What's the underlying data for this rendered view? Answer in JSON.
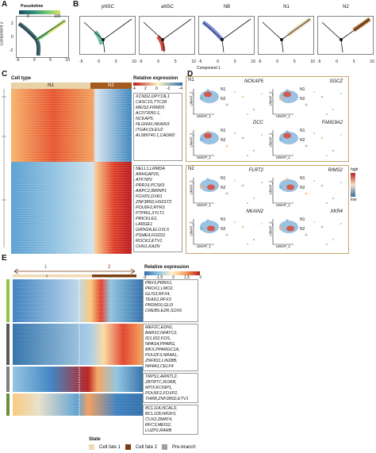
{
  "panels": {
    "A": {
      "letter": "A",
      "legend_title": "Pseudotime",
      "legend_ticks": [
        "0",
        "100"
      ],
      "ylabel": "Component 2",
      "yticks": [
        "2",
        "0",
        "-2"
      ],
      "xticks": [
        "-5",
        "0",
        "5",
        "10"
      ]
    },
    "B": {
      "letter": "B",
      "titles": [
        "pNSC",
        "aNSC",
        "NB",
        "N1",
        "N2"
      ],
      "xticks": [
        "-5",
        "0",
        "5",
        "10"
      ],
      "xlabel": "Component 1"
    },
    "C": {
      "letter": "C",
      "cell_type_label": "Cell type",
      "columns": [
        "N1",
        "N2"
      ],
      "legend_title": "Relative expression",
      "legend_ticks": [
        "4",
        "2",
        "0",
        "-2",
        "-4"
      ],
      "gene_groups": [
        [
          "XCND2,DPY19L1",
          "CASC15,TTC28",
          "MEIS2,FRMD5",
          "AC073050.1,",
          "NCKAP5,",
          "NLGN4X,NKAIN3",
          "ITGAV,DLEU2",
          "AL589740.1,CADM2"
        ],
        [
          "NELL1,LRMDA",
          "ARHGAP26,",
          "ATF7IP2",
          "PRR16,PCSK5",
          "ARPC2,BRINP1",
          "FOXP2,DXR1",
          "ZNF385D,HS6ST2",
          "POU6F2,RYR3",
          "PTPRG,XYLT1",
          "PRICKLE2,",
          "LARGE1",
          "GRIN2A,ELOVL5",
          "PSME4,FDZD2",
          "ROCK2,ETV1",
          "CHN1,KAZN"
        ]
      ]
    },
    "D": {
      "letter": "D",
      "n1_label": "N1",
      "n2_label": "N2",
      "n1_genes": [
        "NCKAP5",
        "SGCZ",
        "DCC",
        "FAM19A2"
      ],
      "n2_genes": [
        "FLRT2",
        "RIMS2",
        "NKAIN2",
        "XKR4"
      ],
      "axis_x": "UMAP_1",
      "axis_y": "UMAP_2",
      "cluster_labels": [
        "N1",
        "N2"
      ],
      "legend_high": "high",
      "legend_low": "low"
    },
    "E": {
      "letter": "E",
      "branch_labels": [
        "1",
        "2"
      ],
      "legend_title": "Relative expression",
      "legend_ticks": [
        "-3",
        "-1.5",
        "0",
        "1.5",
        "3"
      ],
      "cluster_numbers": [
        "1",
        "2",
        "3",
        "4"
      ],
      "gene_groups": [
        [
          "PBX3,PRRX1,",
          "PROX1,LMO2,",
          "GLIS3,RFX4,",
          "TEAD1,RFX3",
          "PRDM16,GLI3",
          "CREB5,EZR,SOX6"
        ],
        [
          "MEF2C,EDN1,",
          "BARX2,NFATC2,",
          "ID1,ID2,FOS,",
          "NPAS4,PPARG,",
          "MKX,PPARGC1A,",
          "POU2F3,NR4A1,",
          "ZNF831,LIN28B,",
          "NR4A3,CELF4"
        ],
        [
          "TRPS1,ARNTL2,",
          "ZBTBTC,RORB,",
          "MITF,KCNIP1,",
          "POU6F2,FOXP2,",
          "THRB,ZNF385D,ETV1"
        ],
        [
          "BCL11A,NCALD,",
          "BCL11B,NR2F2,",
          "CUX2,ZMAT4,",
          "RFC3,MEIS2,",
          "LUZP2,RARB"
        ]
      ],
      "state_title": "State",
      "state_items": [
        "Cell fate 1",
        "Cell fate 2",
        "Pre-branch"
      ]
    }
  },
  "colors": {
    "pseudotime_low": "#1d4e5b",
    "pseudotime_high": "#d9e36a",
    "pnsc": "#5bb8a0",
    "ansc": "#d43a2a",
    "nb": "#6f7fd8",
    "n1": "#e8d4a8",
    "n2": "#a45c1e",
    "heat_high": "#b71c1c",
    "heat_mid": "#fff3c4",
    "heat_low": "#2f6fa8",
    "fate1": "#f0d9b5",
    "fate2": "#7a3e12",
    "prebranch": "#9e9e9e",
    "cluster_bar": [
      "#8dc63f",
      "#5a5a5a",
      "#7f7f7f",
      "#6a8f3a"
    ]
  }
}
